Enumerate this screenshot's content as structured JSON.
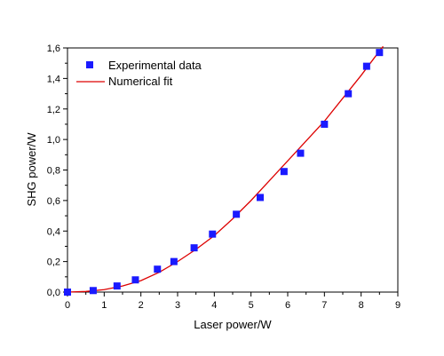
{
  "chart_data": {
    "type": "scatter",
    "xlabel": "Laser power/W",
    "ylabel": "SHG power/W",
    "xlim": [
      0,
      9
    ],
    "ylim": [
      0,
      1.6
    ],
    "xticks": [
      0,
      1,
      2,
      3,
      4,
      5,
      6,
      7,
      8,
      9
    ],
    "yticks": [
      0.0,
      0.2,
      0.4,
      0.6,
      0.8,
      1.0,
      1.2,
      1.4,
      1.6
    ],
    "xtick_labels": [
      "0",
      "1",
      "2",
      "3",
      "4",
      "5",
      "6",
      "7",
      "8",
      "9"
    ],
    "ytick_labels": [
      "0,0",
      "0,2",
      "0,4",
      "0,6",
      "0,8",
      "1,0",
      "1,2",
      "1,4",
      "1,6"
    ],
    "grid": false,
    "legend_position": "top-left",
    "series": [
      {
        "name": "Experimental data",
        "kind": "markers",
        "marker": "square",
        "color": "#1a1aff",
        "x": [
          0.0,
          0.7,
          1.35,
          1.85,
          2.45,
          2.9,
          3.45,
          3.95,
          4.6,
          5.25,
          5.9,
          6.35,
          7.0,
          7.65,
          8.15,
          8.5
        ],
        "y": [
          0.0,
          0.01,
          0.04,
          0.08,
          0.15,
          0.2,
          0.29,
          0.38,
          0.51,
          0.62,
          0.79,
          0.91,
          1.1,
          1.3,
          1.48,
          1.57
        ]
      },
      {
        "name": "Numerical fit",
        "kind": "line",
        "color": "#dd0000",
        "x": [
          0.0,
          0.5,
          1.0,
          1.5,
          2.0,
          2.5,
          3.0,
          3.5,
          4.0,
          4.5,
          5.0,
          5.5,
          6.0,
          6.5,
          7.0,
          7.5,
          8.0,
          8.5,
          8.6
        ],
        "y": [
          0.0,
          0.004,
          0.016,
          0.04,
          0.075,
          0.13,
          0.2,
          0.28,
          0.37,
          0.48,
          0.6,
          0.73,
          0.86,
          0.99,
          1.12,
          1.27,
          1.42,
          1.58,
          1.61
        ]
      }
    ]
  }
}
